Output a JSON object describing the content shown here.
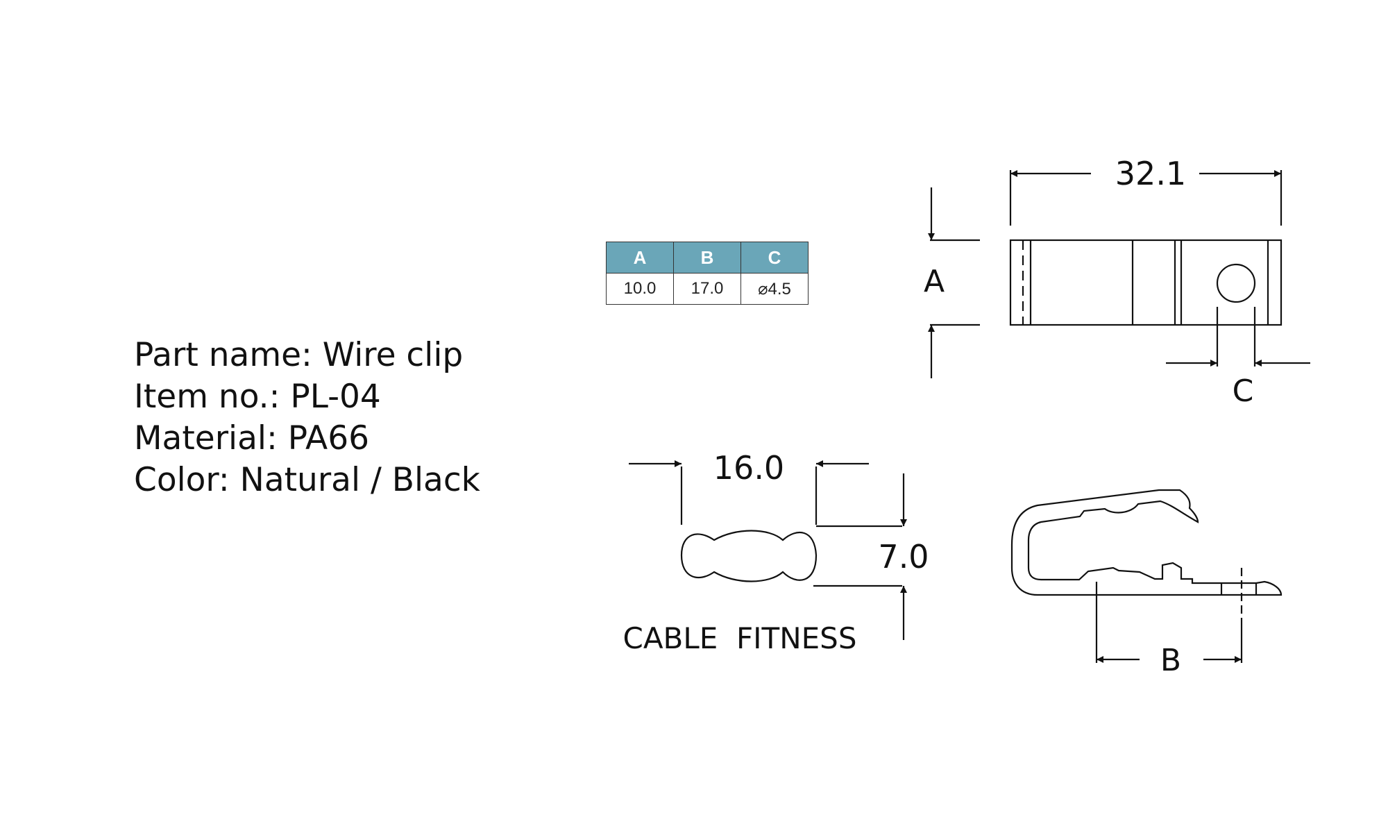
{
  "spec": {
    "part_name": "Part name: Wire clip",
    "item_no": "Item no.: PL-04",
    "material": "Material: PA66",
    "color": "Color: Natural / Black"
  },
  "table": {
    "headers": [
      "A",
      "B",
      "C"
    ],
    "values": [
      "10.0",
      "17.0",
      "⌀4.5"
    ]
  },
  "drawing": {
    "dim_length": "32.1",
    "label_a": "A",
    "label_c": "C",
    "dim_width": "16.0",
    "dim_height": "7.0",
    "caption": "CABLE  FITNESS",
    "label_b": "B"
  }
}
